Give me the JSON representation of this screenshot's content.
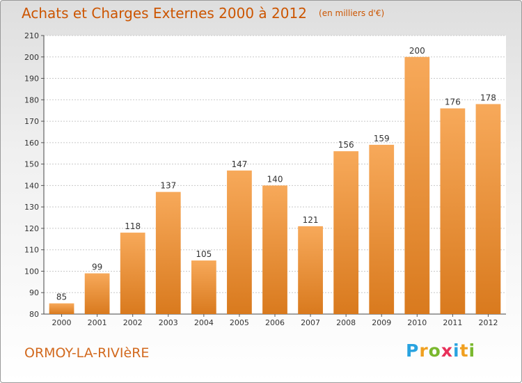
{
  "title": {
    "main": "Achats et Charges Externes 2000 à 2012",
    "unit": "(en milliers d'€)"
  },
  "place": "ORMOY-LA-RIVIèRE",
  "brand": {
    "text": "Proxiti",
    "letters": [
      "P",
      "r",
      "o",
      "x",
      "i",
      "t",
      "i"
    ],
    "colors": [
      "#29a3e0",
      "#f0a020",
      "#7ab82e",
      "#e8305a",
      "#29a3e0",
      "#f0a020",
      "#7ab82e"
    ]
  },
  "colors": {
    "title": "#cc5500",
    "bar_light": "#f7a95a",
    "bar_dark": "#d97a1e",
    "grid": "#c8c8c8"
  },
  "chart_data": {
    "type": "bar",
    "title": "Achats et Charges Externes 2000 à 2012",
    "subtitle": "(en milliers d'€)",
    "xlabel": "",
    "ylabel": "",
    "categories": [
      "2000",
      "2001",
      "2002",
      "2003",
      "2004",
      "2005",
      "2006",
      "2007",
      "2008",
      "2009",
      "2010",
      "2011",
      "2012"
    ],
    "values": [
      85,
      99,
      118,
      137,
      105,
      147,
      140,
      121,
      156,
      159,
      200,
      176,
      178
    ],
    "ylim": [
      80,
      210
    ],
    "yticks": [
      80,
      90,
      100,
      110,
      120,
      130,
      140,
      150,
      160,
      170,
      180,
      190,
      200,
      210
    ],
    "grid": true,
    "legend": "none"
  }
}
